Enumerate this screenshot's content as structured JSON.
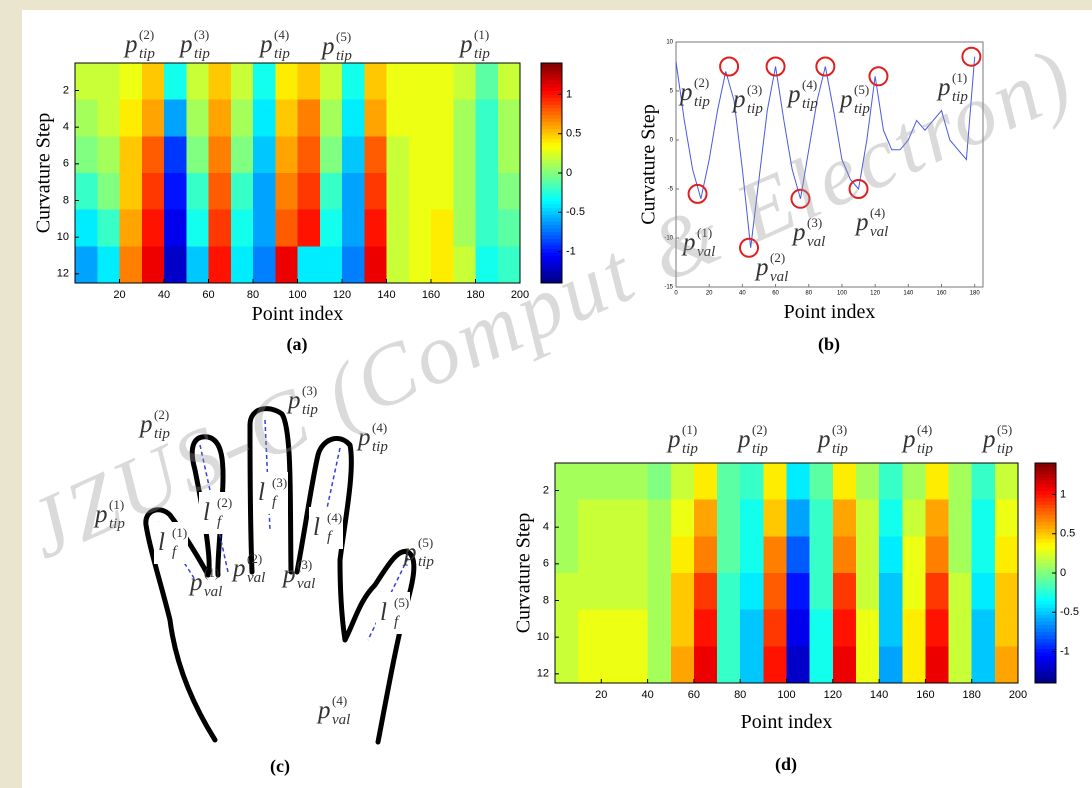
{
  "watermark": "JZUS-C (Comput & Electron)",
  "chart_data": [
    {
      "type": "heatmap",
      "caption": "(a)",
      "xlabel": "Point index",
      "ylabel": "Curvature Step",
      "xbins": [
        0,
        10,
        20,
        30,
        40,
        50,
        60,
        70,
        80,
        90,
        100,
        110,
        120,
        130,
        140,
        150,
        160,
        170,
        180,
        190,
        200
      ],
      "ybins": [
        0.5,
        2.5,
        4.5,
        6.5,
        8.5,
        10.5,
        12.5
      ],
      "z": [
        [
          0.2,
          0.2,
          0.3,
          0.5,
          -0.3,
          0.2,
          0.5,
          0.2,
          -0.3,
          0.4,
          0.5,
          0.2,
          -0.3,
          0.5,
          0.3,
          0.3,
          0.3,
          0.2,
          -0.1,
          0.2
        ],
        [
          0.1,
          0.2,
          0.4,
          0.6,
          -0.6,
          0.1,
          0.6,
          0.1,
          -0.4,
          0.5,
          0.7,
          0.1,
          -0.4,
          0.6,
          0.3,
          0.3,
          0.3,
          0.1,
          -0.2,
          0.1
        ],
        [
          0,
          0.1,
          0.5,
          0.8,
          -0.9,
          0,
          0.7,
          0,
          -0.5,
          0.6,
          0.8,
          0,
          -0.5,
          0.8,
          0.2,
          0.3,
          0.3,
          0.1,
          -0.2,
          0.1
        ],
        [
          -0.2,
          0,
          0.5,
          0.9,
          -1.0,
          -0.2,
          0.8,
          -0.2,
          -0.6,
          0.7,
          0.9,
          -0.2,
          -0.6,
          0.9,
          0.2,
          0.3,
          0.3,
          0.1,
          -0.2,
          0
        ],
        [
          -0.4,
          -0.2,
          0.6,
          1.0,
          -1.1,
          -0.3,
          0.9,
          -0.3,
          -0.6,
          0.8,
          1.0,
          -0.3,
          -0.6,
          1.0,
          0.2,
          0.3,
          0.4,
          0.1,
          -0.2,
          -0.1
        ],
        [
          -0.6,
          -0.4,
          0.7,
          1.1,
          -1.2,
          -0.5,
          1.0,
          -0.4,
          -0.7,
          1.1,
          -0.4,
          -0.4,
          -0.7,
          1.1,
          0.2,
          0.3,
          0.4,
          0.2,
          -0.3,
          -0.2
        ]
      ],
      "xlim": [
        0,
        200
      ],
      "ylim": [
        0.5,
        12.5
      ],
      "y_reversed": true,
      "xticks": [
        20,
        40,
        60,
        80,
        100,
        120,
        140,
        160,
        180,
        200
      ],
      "yticks": [
        2,
        4,
        6,
        8,
        10,
        12
      ],
      "clim": [
        -1.4,
        1.4
      ],
      "cticks": [
        -1,
        -0.5,
        0,
        0.5,
        1
      ],
      "colormap": "jet",
      "annotations": [
        {
          "base": "p",
          "sub": "tip",
          "sup": "(2)"
        },
        {
          "base": "p",
          "sub": "tip",
          "sup": "(3)"
        },
        {
          "base": "p",
          "sub": "tip",
          "sup": "(4)"
        },
        {
          "base": "p",
          "sub": "tip",
          "sup": "(5)"
        },
        {
          "base": "p",
          "sub": "tip",
          "sup": "(1)"
        }
      ]
    },
    {
      "type": "line",
      "caption": "(b)",
      "xlabel": "Point index",
      "ylabel": "Curvature Step",
      "x": [
        0,
        5,
        10,
        15,
        20,
        25,
        30,
        35,
        40,
        45,
        50,
        55,
        60,
        65,
        70,
        75,
        80,
        85,
        90,
        95,
        100,
        105,
        110,
        115,
        120,
        125,
        130,
        135,
        140,
        145,
        150,
        155,
        160,
        165,
        170,
        175,
        180
      ],
      "series": [
        {
          "color": "#4a5ae0",
          "values": [
            8,
            2,
            -3,
            -6,
            -2,
            3,
            7,
            4,
            -3,
            -11,
            -4,
            3,
            7.5,
            2,
            -3,
            -6,
            -1,
            4,
            7.5,
            3,
            -2,
            -4,
            -5,
            0,
            6.5,
            1,
            -1,
            -1,
            0,
            2,
            1,
            2,
            3,
            0,
            -1,
            -2,
            8.5
          ]
        }
      ],
      "markers": {
        "color": "#e02020",
        "x": [
          13,
          32,
          44,
          60,
          75,
          90,
          110,
          122,
          178
        ],
        "y": [
          -5.5,
          7.5,
          -11,
          7.5,
          -6,
          7.5,
          -5,
          6.5,
          8.5
        ]
      },
      "xlim": [
        0,
        185
      ],
      "ylim": [
        -15,
        10
      ],
      "xticks": [
        0,
        20,
        40,
        60,
        80,
        100,
        120,
        140,
        160,
        180
      ],
      "yticks": [
        -15,
        -10,
        -5,
        0,
        5,
        10
      ],
      "annotations": [
        {
          "base": "p",
          "sub": "tip",
          "sup": "(2)"
        },
        {
          "base": "p",
          "sub": "tip",
          "sup": "(3)"
        },
        {
          "base": "p",
          "sub": "tip",
          "sup": "(4)"
        },
        {
          "base": "p",
          "sub": "tip",
          "sup": "(5)"
        },
        {
          "base": "p",
          "sub": "tip",
          "sup": "(1)"
        },
        {
          "base": "p",
          "sub": "val",
          "sup": "(1)"
        },
        {
          "base": "p",
          "sub": "val",
          "sup": "(2)"
        },
        {
          "base": "p",
          "sub": "val",
          "sup": "(3)"
        },
        {
          "base": "p",
          "sub": "val",
          "sup": "(4)"
        }
      ]
    },
    {
      "type": "heatmap",
      "caption": "(d)",
      "xlabel": "Point index",
      "ylabel": "Curvature Step",
      "xbins": [
        0,
        10,
        20,
        30,
        40,
        50,
        60,
        70,
        80,
        90,
        100,
        110,
        120,
        130,
        140,
        150,
        160,
        170,
        180,
        190,
        200
      ],
      "ybins": [
        0.5,
        2.5,
        4.5,
        6.5,
        8.5,
        10.5,
        12.5
      ],
      "z": [
        [
          0.1,
          0.1,
          0.1,
          0.1,
          0,
          0.2,
          0.4,
          -0.1,
          -0.2,
          0.4,
          -0.4,
          -0.1,
          0.4,
          0.1,
          -0.2,
          0.1,
          0.4,
          0.1,
          -0.2,
          0.2
        ],
        [
          0.1,
          0.2,
          0.2,
          0.2,
          0.1,
          0.3,
          0.6,
          -0.1,
          -0.3,
          0.5,
          -0.6,
          -0.2,
          0.6,
          0.2,
          -0.3,
          0.2,
          0.6,
          0.1,
          -0.3,
          0.3
        ],
        [
          0.1,
          0.2,
          0.2,
          0.2,
          0.1,
          0.4,
          0.7,
          -0.1,
          -0.3,
          0.7,
          -0.8,
          -0.2,
          0.7,
          0.2,
          -0.4,
          0.3,
          0.7,
          0.1,
          -0.3,
          0.4
        ],
        [
          0.2,
          0.2,
          0.2,
          0.2,
          0.1,
          0.5,
          0.9,
          -0.2,
          -0.4,
          0.8,
          -1.0,
          -0.2,
          0.9,
          0.2,
          -0.5,
          0.3,
          0.9,
          0.2,
          -0.4,
          0.5
        ],
        [
          0.2,
          0.3,
          0.3,
          0.3,
          0.1,
          0.5,
          1.0,
          -0.2,
          -0.5,
          0.9,
          -1.1,
          -0.3,
          1.0,
          0.3,
          -0.5,
          0.4,
          1.0,
          0.2,
          -0.5,
          0.5
        ],
        [
          0.2,
          0.3,
          0.3,
          0.3,
          0.1,
          0.6,
          1.1,
          -0.2,
          -0.5,
          1.0,
          -1.2,
          -0.3,
          1.1,
          0.3,
          -0.6,
          0.4,
          1.1,
          0.2,
          -0.5,
          0.6
        ]
      ],
      "xlim": [
        0,
        200
      ],
      "ylim": [
        0.5,
        12.5
      ],
      "y_reversed": true,
      "xticks": [
        20,
        40,
        60,
        80,
        100,
        120,
        140,
        160,
        180,
        200
      ],
      "yticks": [
        2,
        4,
        6,
        8,
        10,
        12
      ],
      "clim": [
        -1.4,
        1.4
      ],
      "cticks": [
        -1,
        -0.5,
        0,
        0.5,
        1
      ],
      "colormap": "jet",
      "annotations": [
        {
          "base": "p",
          "sub": "tip",
          "sup": "(1)"
        },
        {
          "base": "p",
          "sub": "tip",
          "sup": "(2)"
        },
        {
          "base": "p",
          "sub": "tip",
          "sup": "(3)"
        },
        {
          "base": "p",
          "sub": "tip",
          "sup": "(4)"
        },
        {
          "base": "p",
          "sub": "tip",
          "sup": "(5)"
        }
      ]
    }
  ],
  "diagram": {
    "caption": "(c)",
    "labels": [
      {
        "base": "p",
        "sub": "tip",
        "sup": "(1)"
      },
      {
        "base": "p",
        "sub": "tip",
        "sup": "(2)"
      },
      {
        "base": "p",
        "sub": "tip",
        "sup": "(3)"
      },
      {
        "base": "p",
        "sub": "tip",
        "sup": "(4)"
      },
      {
        "base": "p",
        "sub": "tip",
        "sup": "(5)"
      },
      {
        "base": "p",
        "sub": "val",
        "sup": "(1)"
      },
      {
        "base": "p",
        "sub": "val",
        "sup": "(2)"
      },
      {
        "base": "p",
        "sub": "val",
        "sup": "(3)"
      },
      {
        "base": "p",
        "sub": "val",
        "sup": "(4)"
      },
      {
        "base": "l",
        "sub": "f",
        "sup": "(1)"
      },
      {
        "base": "l",
        "sub": "f",
        "sup": "(2)"
      },
      {
        "base": "l",
        "sub": "f",
        "sup": "(3)"
      },
      {
        "base": "l",
        "sub": "f",
        "sup": "(4)"
      },
      {
        "base": "l",
        "sub": "f",
        "sup": "(5)"
      }
    ]
  }
}
